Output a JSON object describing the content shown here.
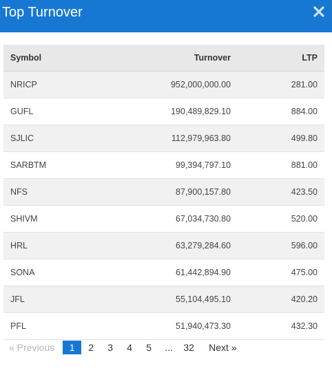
{
  "dialog": {
    "title": "Top Turnover",
    "close_icon": "close-icon"
  },
  "table": {
    "headers": {
      "symbol": "Symbol",
      "turnover": "Turnover",
      "ltp": "LTP"
    },
    "rows": [
      {
        "symbol": "NRICP",
        "turnover": "952,000,000.00",
        "ltp": "281.00"
      },
      {
        "symbol": "GUFL",
        "turnover": "190,489,829.10",
        "ltp": "884.00"
      },
      {
        "symbol": "SJLIC",
        "turnover": "112,979,963.80",
        "ltp": "499.80"
      },
      {
        "symbol": "SARBTM",
        "turnover": "99,394,797.10",
        "ltp": "881.00"
      },
      {
        "symbol": "NFS",
        "turnover": "87,900,157.80",
        "ltp": "423.50"
      },
      {
        "symbol": "SHIVM",
        "turnover": "67,034,730.80",
        "ltp": "520.00"
      },
      {
        "symbol": "HRL",
        "turnover": "63,279,284.60",
        "ltp": "596.00"
      },
      {
        "symbol": "SONA",
        "turnover": "61,442,894.90",
        "ltp": "475.00"
      },
      {
        "symbol": "JFL",
        "turnover": "55,104,495.10",
        "ltp": "420.20"
      },
      {
        "symbol": "PFL",
        "turnover": "51,940,473.30",
        "ltp": "432.30"
      }
    ]
  },
  "pagination": {
    "previous_label": "« Previous",
    "next_label": "Next »",
    "pages": [
      "1",
      "2",
      "3",
      "4",
      "5"
    ],
    "ellipsis": "...",
    "last_page": "32",
    "current_page": "1"
  },
  "colors": {
    "header": "#1778d4",
    "active_page": "#1778d4"
  }
}
